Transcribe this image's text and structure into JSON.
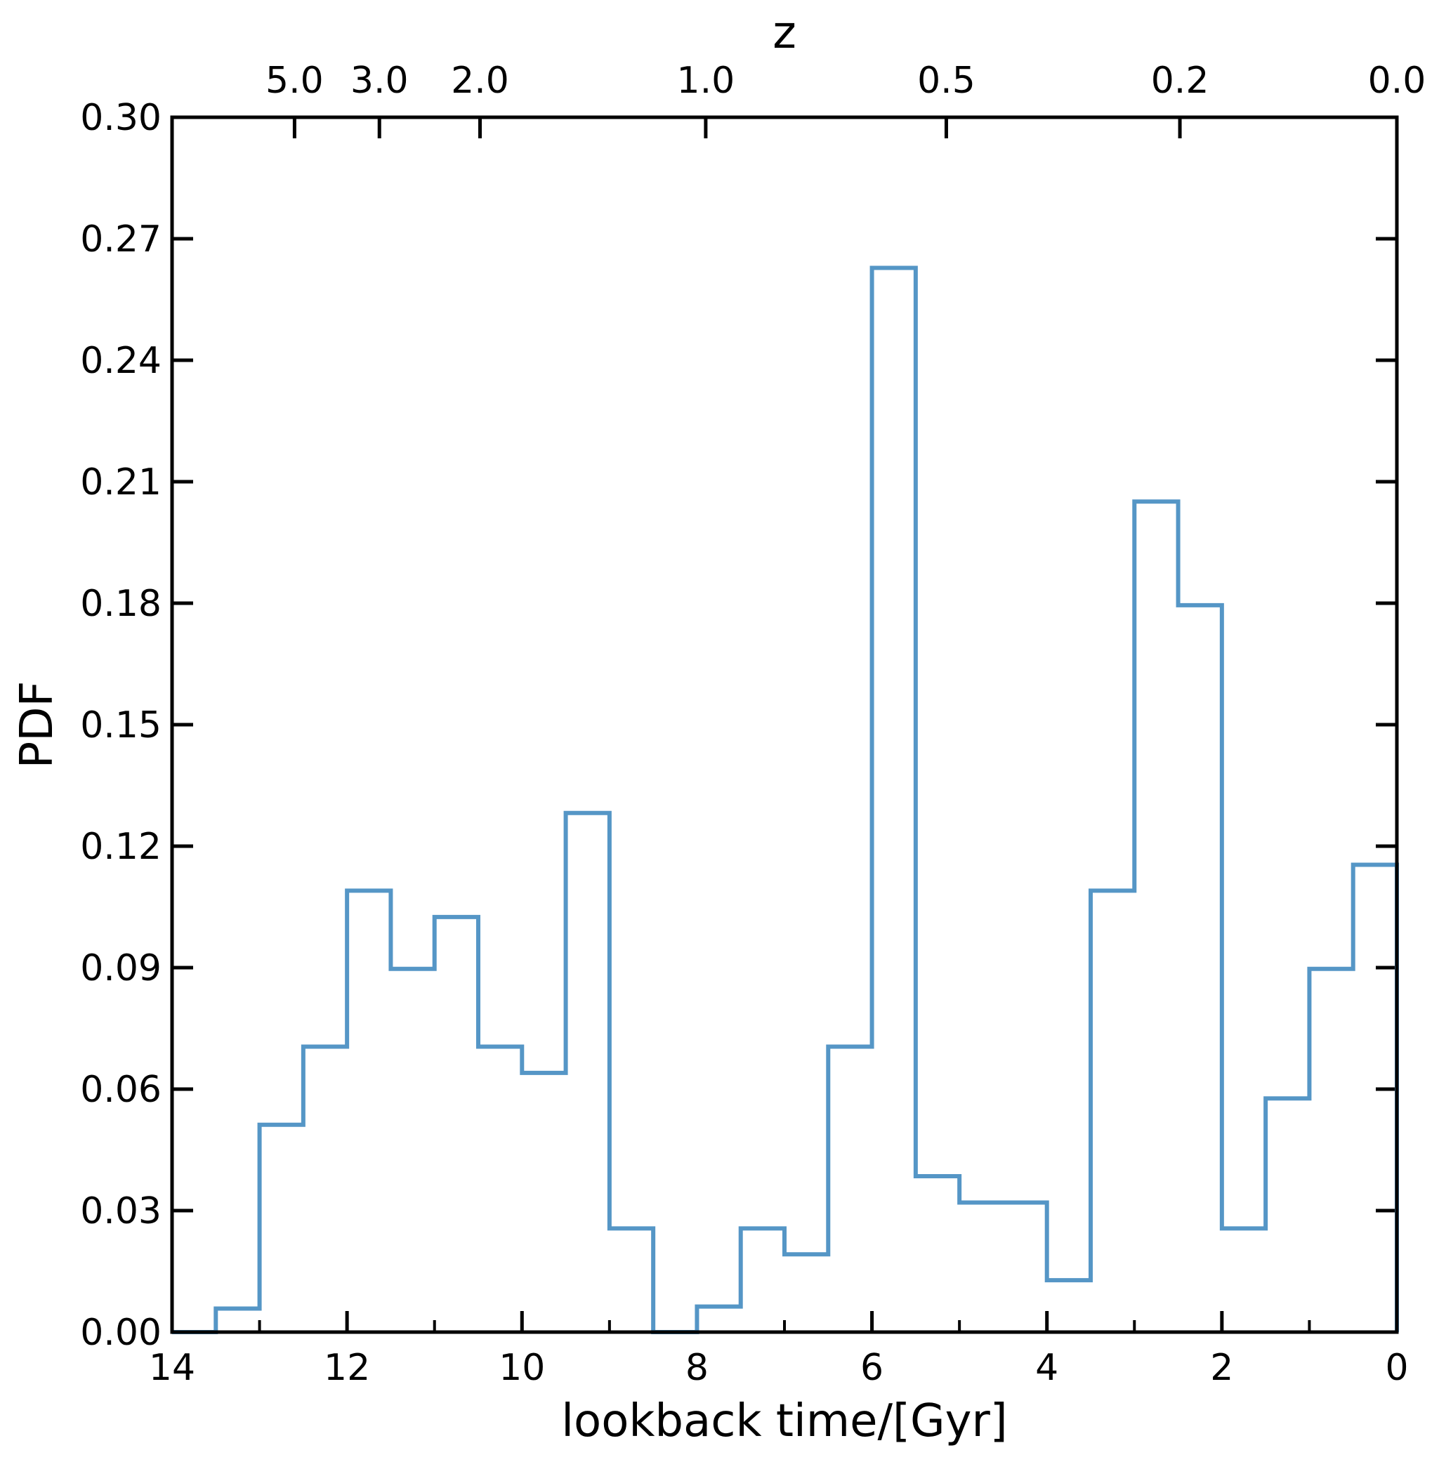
{
  "chart_data": {
    "type": "histogram",
    "title": "",
    "xlabel": "lookback time/[Gyr]",
    "ylabel": "PDF",
    "top_xlabel": "z",
    "xlim": [
      14,
      0
    ],
    "ylim": [
      0.0,
      0.3
    ],
    "x_ticks": [
      14,
      12,
      10,
      8,
      6,
      4,
      2,
      0
    ],
    "x_tick_labels": [
      "14",
      "12",
      "10",
      "8",
      "6",
      "4",
      "2",
      "0"
    ],
    "x_minor_ticks": [
      13,
      11,
      9,
      7,
      5,
      3,
      1
    ],
    "y_ticks": [
      0.0,
      0.03,
      0.06,
      0.09,
      0.12,
      0.15,
      0.18,
      0.21,
      0.24,
      0.27,
      0.3
    ],
    "y_tick_labels": [
      "0.00",
      "0.03",
      "0.06",
      "0.09",
      "0.12",
      "0.15",
      "0.18",
      "0.21",
      "0.24",
      "0.27",
      "0.30"
    ],
    "top_axis": {
      "labels": [
        "5.0",
        "3.0",
        "2.0",
        "1.0",
        "0.5",
        "0.2",
        "0.0"
      ],
      "lookback_positions": [
        12.6,
        11.63,
        10.48,
        7.9,
        5.15,
        2.48,
        0.0
      ]
    },
    "grid": false,
    "color": "#5596c6",
    "bin_edges": [
      14.0,
      13.5,
      13.0,
      12.5,
      12.0,
      11.5,
      11.0,
      10.5,
      10.0,
      9.5,
      9.0,
      8.5,
      8.0,
      7.5,
      7.0,
      6.5,
      6.0,
      5.5,
      5.0,
      4.5,
      4.0,
      3.5,
      3.0,
      2.5,
      2.0,
      1.5,
      1.0,
      0.5,
      0.0
    ],
    "values": [
      0.0,
      0.0058,
      0.0512,
      0.0705,
      0.109,
      0.0897,
      0.1025,
      0.0705,
      0.064,
      0.1282,
      0.0256,
      0.0,
      0.0063,
      0.0256,
      0.0192,
      0.0705,
      0.2628,
      0.0385,
      0.032,
      0.032,
      0.0128,
      0.109,
      0.2051,
      0.1795,
      0.0256,
      0.0577,
      0.0897,
      0.1154
    ]
  }
}
